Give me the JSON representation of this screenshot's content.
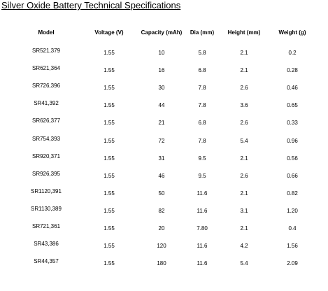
{
  "header": {
    "title": "Silver Oxide Battery Technical Specifications"
  },
  "table": {
    "columns": [
      "Model",
      "Voltage (V)",
      "Capacity (mAh)",
      "Dia (mm)",
      "Height (mm)",
      "Weight (g)"
    ],
    "rows": [
      [
        "SR521,379",
        "1.55",
        "10",
        "5.8",
        "2.1",
        "0.2"
      ],
      [
        "SR621,364",
        "1.55",
        "16",
        "6.8",
        "2.1",
        "0.28"
      ],
      [
        "SR726,396",
        "1.55",
        "30",
        "7.8",
        "2.6",
        "0.46"
      ],
      [
        "SR41,392",
        "1.55",
        "44",
        "7.8",
        "3.6",
        "0.65"
      ],
      [
        "SR626,377",
        "1.55",
        "21",
        "6.8",
        "2.6",
        "0.33"
      ],
      [
        "SR754,393",
        "1.55",
        "72",
        "7.8",
        "5.4",
        "0.96"
      ],
      [
        "SR920,371",
        "1.55",
        "31",
        "9.5",
        "2.1",
        "0.56"
      ],
      [
        "SR926,395",
        "1.55",
        "46",
        "9.5",
        "2.6",
        "0.66"
      ],
      [
        "SR1120,391",
        "1.55",
        "50",
        "11.6",
        "2.1",
        "0.82"
      ],
      [
        "SR1130,389",
        "1.55",
        "82",
        "11.6",
        "3.1",
        "1.20"
      ],
      [
        "SR721,361",
        "1.55",
        "20",
        "7.80",
        "2.1",
        "0.4"
      ],
      [
        "SR43,386",
        "1.55",
        "120",
        "11.6",
        "4.2",
        "1.56"
      ],
      [
        "SR44,357",
        "1.55",
        "180",
        "11.6",
        "5.4",
        "2.09"
      ]
    ]
  }
}
